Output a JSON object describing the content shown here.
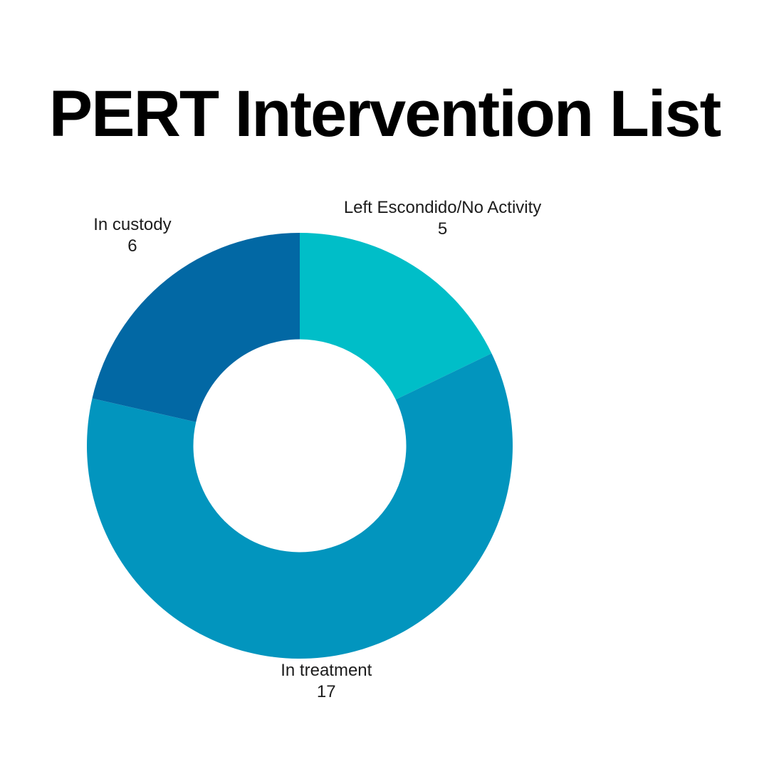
{
  "page": {
    "background_color": "#ffffff",
    "text_color": "#1c1c1c"
  },
  "title": "PERT Intervention List",
  "chart_data": {
    "type": "pie",
    "subtype": "donut",
    "title": "PERT Intervention List",
    "categories": [
      "Left Escondido/No Activity",
      "In treatment",
      "In custody"
    ],
    "values": [
      5,
      17,
      6
    ],
    "total": 28,
    "slices": [
      {
        "label": "Left Escondido/No Activity",
        "value": 5,
        "color": "#00BEC8"
      },
      {
        "label": "In treatment",
        "value": 17,
        "color": "#0295BE"
      },
      {
        "label": "In custody",
        "value": 6,
        "color": "#0268A4"
      }
    ],
    "start_angle_clockwise_from_top_deg": 0,
    "direction": "clockwise",
    "inner_radius_ratio": 0.5,
    "labels_position": "outside",
    "label_format": "category name above value",
    "legend": "none",
    "grid": "off"
  }
}
